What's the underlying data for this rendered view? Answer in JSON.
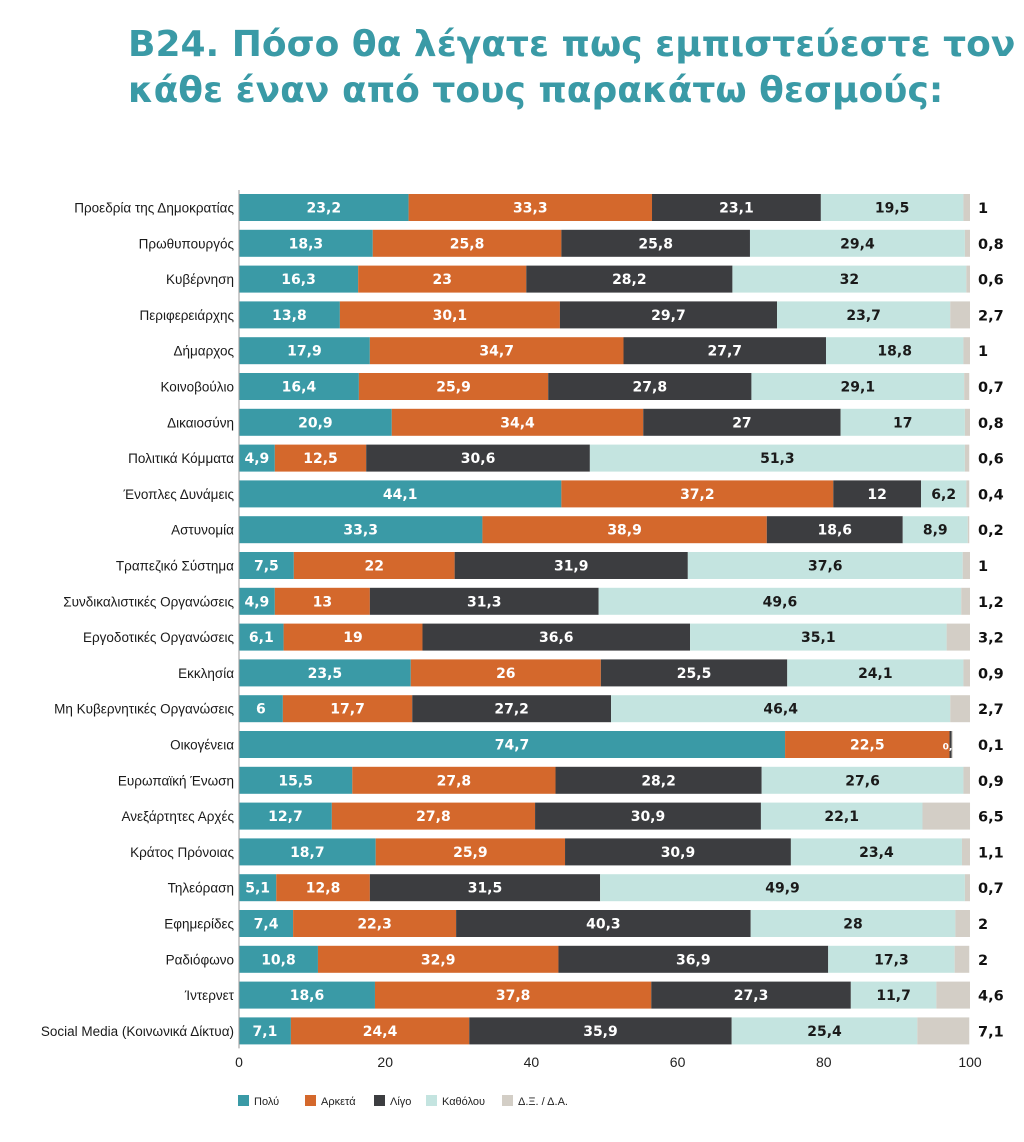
{
  "title_lines": [
    "B24. Πόσο θα λέγατε πως εμπιστεύεστε τον",
    "κάθε έναν από τους παρακάτω θεσμούς:"
  ],
  "colors": {
    "title": "#3a9aa6",
    "Πολύ": "#3a9aa6",
    "Αρκετά": "#d4682c",
    "Λίγο": "#3c3d40",
    "Καθόλου": "#c4e4e0",
    "Δ.Ξ. / Δ.Α.": "#d3cec6"
  },
  "chart_data": {
    "type": "bar",
    "orientation": "horizontal",
    "stacked": true,
    "title": "B24. Πόσο θα λέγατε πως εμπιστεύεστε τον κάθε έναν από τους παρακάτω θεσμούς:",
    "xlim": [
      0,
      100
    ],
    "xticks": [
      "0",
      "20",
      "40",
      "60",
      "80",
      "100"
    ],
    "legend_position": "bottom",
    "grid": false,
    "categories": [
      "Προεδρία της Δημοκρατίας",
      "Πρωθυπουργός",
      "Κυβέρνηση",
      "Περιφερειάρχης",
      "Δήμαρχος",
      "Κοινοβούλιο",
      "Δικαιοσύνη",
      "Πολιτικά Κόμματα",
      "Ένοπλες Δυνάμεις",
      "Αστυνομία",
      "Τραπεζικό Σύστημα",
      "Συνδικαλιστικές Οργανώσεις",
      "Εργοδοτικές Οργανώσεις",
      "Εκκλησία",
      "Μη Κυβερνητικές Οργανώσεις",
      "Οικογένεια",
      "Ευρωπαϊκή Ένωση",
      "Ανεξάρτητες Αρχές",
      "Κράτος Πρόνοιας",
      "Τηλεόραση",
      "Εφημερίδες",
      "Ραδιόφωνο",
      "Ίντερνετ",
      "Social Media (Κοινωνικά Δίκτυα)"
    ],
    "series": [
      {
        "name": "Πολύ",
        "values": [
          23.2,
          18.3,
          16.3,
          13.8,
          17.9,
          16.4,
          20.9,
          4.9,
          44.1,
          33.3,
          7.5,
          4.9,
          6.1,
          23.5,
          6,
          74.7,
          15.5,
          12.7,
          18.7,
          5.1,
          7.4,
          10.8,
          18.6,
          7.1
        ]
      },
      {
        "name": "Αρκετά",
        "values": [
          33.3,
          25.8,
          23,
          30.1,
          34.7,
          25.9,
          34.4,
          12.5,
          37.2,
          38.9,
          22,
          13,
          19,
          26,
          17.7,
          22.5,
          27.8,
          27.8,
          25.9,
          12.8,
          22.3,
          32.9,
          37.8,
          24.4
        ]
      },
      {
        "name": "Λίγο",
        "values": [
          23.1,
          25.8,
          28.2,
          29.7,
          27.7,
          27.8,
          27,
          30.6,
          12,
          18.6,
          31.9,
          31.3,
          36.6,
          25.5,
          27.2,
          0.3,
          28.2,
          30.9,
          30.9,
          31.5,
          40.3,
          36.9,
          27.3,
          35.9
        ]
      },
      {
        "name": "Καθόλου",
        "values": [
          19.5,
          29.4,
          32,
          23.7,
          18.8,
          29.1,
          17,
          51.3,
          6.2,
          8.9,
          37.6,
          49.6,
          35.1,
          24.1,
          46.4,
          null,
          27.6,
          22.1,
          23.4,
          49.9,
          28,
          17.3,
          11.7,
          25.4
        ]
      },
      {
        "name": "Δ.Ξ. / Δ.Α.",
        "values": [
          1,
          0.8,
          0.6,
          2.7,
          1,
          0.7,
          0.8,
          0.6,
          0.4,
          0.2,
          1,
          1.2,
          3.2,
          0.9,
          2.7,
          0.1,
          0.9,
          6.5,
          1.1,
          0.7,
          2,
          2,
          4.6,
          7.1
        ]
      }
    ]
  }
}
